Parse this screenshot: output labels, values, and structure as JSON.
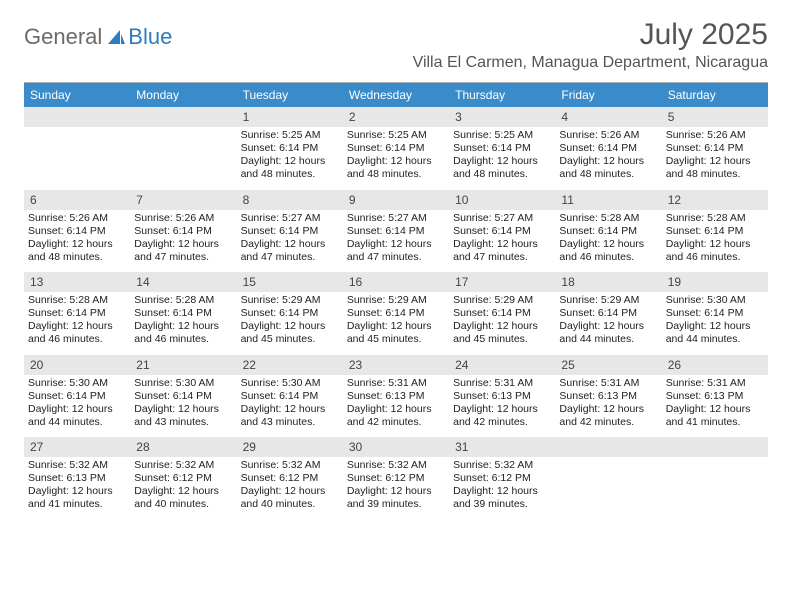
{
  "logo": {
    "word1": "General",
    "word2": "Blue"
  },
  "title": "July 2025",
  "location": "Villa El Carmen, Managua Department, Nicaragua",
  "colors": {
    "header_bg": "#3a8bc9",
    "header_text": "#ffffff",
    "daynum_bg": "#e7e7e7",
    "border": "#b0b0b0",
    "logo_gray": "#6b6b6b",
    "logo_blue": "#2f7bbf",
    "text": "#333333"
  },
  "daysOfWeek": [
    "Sunday",
    "Monday",
    "Tuesday",
    "Wednesday",
    "Thursday",
    "Friday",
    "Saturday"
  ],
  "weeks": [
    [
      {
        "n": "",
        "sr": "",
        "ss": "",
        "dl": ""
      },
      {
        "n": "",
        "sr": "",
        "ss": "",
        "dl": ""
      },
      {
        "n": "1",
        "sr": "5:25 AM",
        "ss": "6:14 PM",
        "dl": "12 hours and 48 minutes."
      },
      {
        "n": "2",
        "sr": "5:25 AM",
        "ss": "6:14 PM",
        "dl": "12 hours and 48 minutes."
      },
      {
        "n": "3",
        "sr": "5:25 AM",
        "ss": "6:14 PM",
        "dl": "12 hours and 48 minutes."
      },
      {
        "n": "4",
        "sr": "5:26 AM",
        "ss": "6:14 PM",
        "dl": "12 hours and 48 minutes."
      },
      {
        "n": "5",
        "sr": "5:26 AM",
        "ss": "6:14 PM",
        "dl": "12 hours and 48 minutes."
      }
    ],
    [
      {
        "n": "6",
        "sr": "5:26 AM",
        "ss": "6:14 PM",
        "dl": "12 hours and 48 minutes."
      },
      {
        "n": "7",
        "sr": "5:26 AM",
        "ss": "6:14 PM",
        "dl": "12 hours and 47 minutes."
      },
      {
        "n": "8",
        "sr": "5:27 AM",
        "ss": "6:14 PM",
        "dl": "12 hours and 47 minutes."
      },
      {
        "n": "9",
        "sr": "5:27 AM",
        "ss": "6:14 PM",
        "dl": "12 hours and 47 minutes."
      },
      {
        "n": "10",
        "sr": "5:27 AM",
        "ss": "6:14 PM",
        "dl": "12 hours and 47 minutes."
      },
      {
        "n": "11",
        "sr": "5:28 AM",
        "ss": "6:14 PM",
        "dl": "12 hours and 46 minutes."
      },
      {
        "n": "12",
        "sr": "5:28 AM",
        "ss": "6:14 PM",
        "dl": "12 hours and 46 minutes."
      }
    ],
    [
      {
        "n": "13",
        "sr": "5:28 AM",
        "ss": "6:14 PM",
        "dl": "12 hours and 46 minutes."
      },
      {
        "n": "14",
        "sr": "5:28 AM",
        "ss": "6:14 PM",
        "dl": "12 hours and 46 minutes."
      },
      {
        "n": "15",
        "sr": "5:29 AM",
        "ss": "6:14 PM",
        "dl": "12 hours and 45 minutes."
      },
      {
        "n": "16",
        "sr": "5:29 AM",
        "ss": "6:14 PM",
        "dl": "12 hours and 45 minutes."
      },
      {
        "n": "17",
        "sr": "5:29 AM",
        "ss": "6:14 PM",
        "dl": "12 hours and 45 minutes."
      },
      {
        "n": "18",
        "sr": "5:29 AM",
        "ss": "6:14 PM",
        "dl": "12 hours and 44 minutes."
      },
      {
        "n": "19",
        "sr": "5:30 AM",
        "ss": "6:14 PM",
        "dl": "12 hours and 44 minutes."
      }
    ],
    [
      {
        "n": "20",
        "sr": "5:30 AM",
        "ss": "6:14 PM",
        "dl": "12 hours and 44 minutes."
      },
      {
        "n": "21",
        "sr": "5:30 AM",
        "ss": "6:14 PM",
        "dl": "12 hours and 43 minutes."
      },
      {
        "n": "22",
        "sr": "5:30 AM",
        "ss": "6:14 PM",
        "dl": "12 hours and 43 minutes."
      },
      {
        "n": "23",
        "sr": "5:31 AM",
        "ss": "6:13 PM",
        "dl": "12 hours and 42 minutes."
      },
      {
        "n": "24",
        "sr": "5:31 AM",
        "ss": "6:13 PM",
        "dl": "12 hours and 42 minutes."
      },
      {
        "n": "25",
        "sr": "5:31 AM",
        "ss": "6:13 PM",
        "dl": "12 hours and 42 minutes."
      },
      {
        "n": "26",
        "sr": "5:31 AM",
        "ss": "6:13 PM",
        "dl": "12 hours and 41 minutes."
      }
    ],
    [
      {
        "n": "27",
        "sr": "5:32 AM",
        "ss": "6:13 PM",
        "dl": "12 hours and 41 minutes."
      },
      {
        "n": "28",
        "sr": "5:32 AM",
        "ss": "6:12 PM",
        "dl": "12 hours and 40 minutes."
      },
      {
        "n": "29",
        "sr": "5:32 AM",
        "ss": "6:12 PM",
        "dl": "12 hours and 40 minutes."
      },
      {
        "n": "30",
        "sr": "5:32 AM",
        "ss": "6:12 PM",
        "dl": "12 hours and 39 minutes."
      },
      {
        "n": "31",
        "sr": "5:32 AM",
        "ss": "6:12 PM",
        "dl": "12 hours and 39 minutes."
      },
      {
        "n": "",
        "sr": "",
        "ss": "",
        "dl": ""
      },
      {
        "n": "",
        "sr": "",
        "ss": "",
        "dl": ""
      }
    ]
  ],
  "labels": {
    "sunrise": "Sunrise:",
    "sunset": "Sunset:",
    "daylight": "Daylight:"
  }
}
